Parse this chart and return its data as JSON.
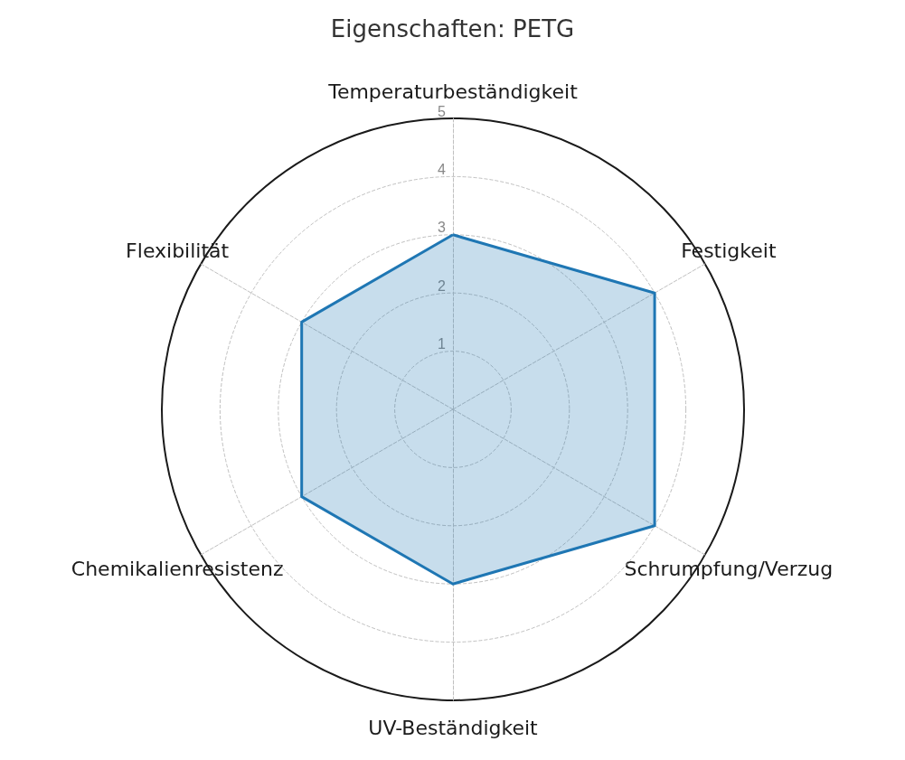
{
  "chart_data": {
    "type": "radar",
    "title": "Eigenschaften: PETG",
    "categories": [
      "Temperaturbeständigkeit",
      "Festigkeit",
      "Schrumpfung/Verzug",
      "UV-Beständigkeit",
      "Chemikalienresistenz",
      "Flexibilität"
    ],
    "series": [
      {
        "color": "#1f77b4",
        "values": [
          3,
          4,
          4,
          3,
          3,
          3
        ]
      }
    ],
    "ylim": [
      0,
      5
    ],
    "yticks": [
      1,
      2,
      3,
      4,
      5
    ],
    "grid": true
  }
}
